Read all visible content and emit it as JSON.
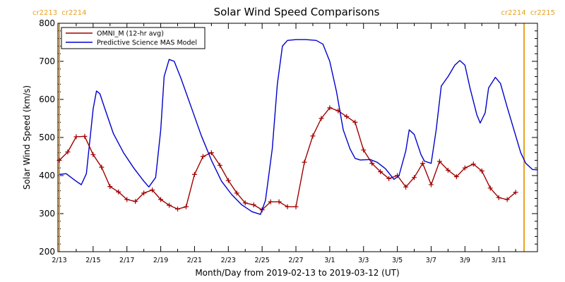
{
  "chart_data": {
    "type": "line",
    "title": "Solar Wind Speed Comparisons",
    "xlabel": "Month/Day from 2019-02-13 to 2019-03-12 (UT)",
    "ylabel": "Solar Wind Speed (km/s)",
    "ylim": [
      200,
      800
    ],
    "y_ticks": [
      200,
      300,
      400,
      500,
      600,
      700,
      800
    ],
    "x_ticks": [
      "2/13",
      "2/15",
      "2/17",
      "2/19",
      "2/21",
      "2/23",
      "2/25",
      "2/27",
      "3/1",
      "3/3",
      "3/5",
      "3/7",
      "3/9",
      "3/11"
    ],
    "x_tick_days": [
      0,
      2,
      4,
      6,
      8,
      10,
      12,
      14,
      16,
      18,
      20,
      22,
      24,
      26
    ],
    "xlim_days": [
      0,
      27.5
    ],
    "legend_position": "top-left",
    "carrington_labels": {
      "left": "cr2213  cr2214",
      "right": "cr2214  cr2215"
    },
    "carrington_marker_days": [
      0,
      27.5
    ],
    "colors": {
      "omni": "#a00000",
      "model": "#0000cc",
      "carrington": "#e8a020",
      "axes": "#000000"
    },
    "series": [
      {
        "name": "OMNI_M (12-hr avg)",
        "marker": "plus",
        "points": [
          [
            0.0,
            440
          ],
          [
            0.5,
            462
          ],
          [
            1.0,
            502
          ],
          [
            1.5,
            503
          ],
          [
            2.0,
            455
          ],
          [
            2.5,
            422
          ],
          [
            3.0,
            371
          ],
          [
            3.5,
            357
          ],
          [
            4.0,
            337
          ],
          [
            4.5,
            332
          ],
          [
            5.0,
            354
          ],
          [
            5.5,
            362
          ],
          [
            6.0,
            337
          ],
          [
            6.5,
            322
          ],
          [
            7.0,
            312
          ],
          [
            7.5,
            318
          ],
          [
            8.0,
            403
          ],
          [
            8.5,
            450
          ],
          [
            9.0,
            460
          ],
          [
            9.5,
            427
          ],
          [
            10.0,
            387
          ],
          [
            10.5,
            354
          ],
          [
            11.0,
            328
          ],
          [
            11.5,
            323
          ],
          [
            12.0,
            310
          ],
          [
            12.5,
            331
          ],
          [
            13.0,
            331
          ],
          [
            13.5,
            318
          ],
          [
            14.0,
            318
          ],
          [
            14.5,
            435
          ],
          [
            15.0,
            504
          ],
          [
            15.5,
            550
          ],
          [
            16.0,
            578
          ],
          [
            16.5,
            570
          ],
          [
            17.0,
            555
          ],
          [
            17.5,
            540
          ],
          [
            18.0,
            467
          ],
          [
            18.5,
            432
          ],
          [
            19.0,
            410
          ],
          [
            19.5,
            392
          ],
          [
            20.0,
            400
          ],
          [
            20.5,
            370
          ],
          [
            21.0,
            395
          ],
          [
            21.5,
            432
          ],
          [
            22.0,
            376
          ],
          [
            22.5,
            437
          ],
          [
            23.0,
            414
          ],
          [
            23.5,
            397
          ],
          [
            24.0,
            420
          ],
          [
            24.5,
            430
          ],
          [
            25.0,
            412
          ],
          [
            25.5,
            367
          ],
          [
            26.0,
            342
          ],
          [
            26.5,
            337
          ],
          [
            27.0,
            356
          ]
        ]
      },
      {
        "name": "Predictive Science MAS Model",
        "marker": "none",
        "points": [
          [
            0.0,
            403
          ],
          [
            0.4,
            405
          ],
          [
            1.0,
            385
          ],
          [
            1.3,
            376
          ],
          [
            1.6,
            405
          ],
          [
            2.0,
            575
          ],
          [
            2.2,
            622
          ],
          [
            2.4,
            615
          ],
          [
            2.7,
            575
          ],
          [
            3.2,
            510
          ],
          [
            3.8,
            460
          ],
          [
            4.4,
            420
          ],
          [
            5.0,
            385
          ],
          [
            5.3,
            370
          ],
          [
            5.7,
            395
          ],
          [
            6.0,
            520
          ],
          [
            6.2,
            660
          ],
          [
            6.5,
            705
          ],
          [
            6.8,
            700
          ],
          [
            7.2,
            655
          ],
          [
            7.8,
            580
          ],
          [
            8.4,
            505
          ],
          [
            9.0,
            440
          ],
          [
            9.6,
            385
          ],
          [
            10.2,
            350
          ],
          [
            10.8,
            323
          ],
          [
            11.4,
            305
          ],
          [
            11.9,
            298
          ],
          [
            12.2,
            335
          ],
          [
            12.6,
            470
          ],
          [
            12.9,
            640
          ],
          [
            13.2,
            740
          ],
          [
            13.5,
            755
          ],
          [
            14.0,
            757
          ],
          [
            14.6,
            757
          ],
          [
            15.2,
            755
          ],
          [
            15.6,
            745
          ],
          [
            16.0,
            700
          ],
          [
            16.4,
            620
          ],
          [
            16.8,
            520
          ],
          [
            17.2,
            470
          ],
          [
            17.5,
            445
          ],
          [
            17.8,
            441
          ],
          [
            18.4,
            442
          ],
          [
            18.8,
            435
          ],
          [
            19.3,
            418
          ],
          [
            19.8,
            390
          ],
          [
            20.1,
            400
          ],
          [
            20.5,
            465
          ],
          [
            20.7,
            520
          ],
          [
            21.0,
            508
          ],
          [
            21.4,
            455
          ],
          [
            21.6,
            438
          ],
          [
            22.0,
            432
          ],
          [
            22.3,
            520
          ],
          [
            22.6,
            635
          ],
          [
            23.0,
            660
          ],
          [
            23.4,
            690
          ],
          [
            23.7,
            702
          ],
          [
            24.0,
            690
          ],
          [
            24.3,
            630
          ],
          [
            24.7,
            560
          ],
          [
            24.9,
            538
          ],
          [
            25.2,
            565
          ],
          [
            25.4,
            630
          ],
          [
            25.8,
            658
          ],
          [
            26.1,
            642
          ],
          [
            26.5,
            580
          ],
          [
            26.9,
            520
          ],
          [
            27.3,
            460
          ],
          [
            27.6,
            432
          ],
          [
            28.0,
            416
          ],
          [
            28.3,
            415
          ]
        ]
      }
    ]
  }
}
